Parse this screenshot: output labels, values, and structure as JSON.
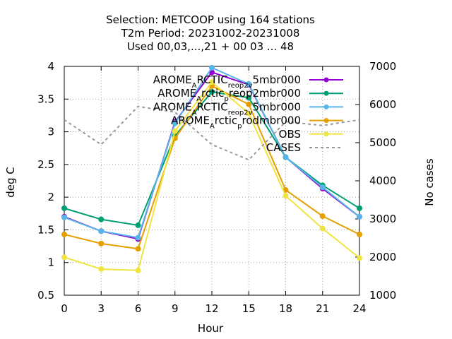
{
  "chart_data": {
    "type": "line",
    "title_lines": [
      "Selection: METCOOP using   164 stations",
      "T2m   Period: 20231002-20231008",
      "Used  00,03,...,21 + 00 03 ... 48"
    ],
    "xlabel": "Hour",
    "ylabel": "deg C",
    "y2label": "No cases",
    "x": [
      0,
      3,
      6,
      9,
      12,
      15,
      18,
      21,
      24
    ],
    "xlim": [
      0,
      24
    ],
    "ylim": [
      0.5,
      4
    ],
    "y2lim": [
      1000,
      7000
    ],
    "x_ticks": [
      "0",
      "3",
      "6",
      "9",
      "12",
      "15",
      "18",
      "21",
      "24"
    ],
    "y_ticks": [
      "0.5",
      "1",
      "1.5",
      "2",
      "2.5",
      "3",
      "3.5",
      "4"
    ],
    "y2_ticks": [
      "1000",
      "2000",
      "3000",
      "4000",
      "5000",
      "6000",
      "7000"
    ],
    "grid": true,
    "legend_position": "top-right",
    "series": [
      {
        "name_parts": [
          [
            "AROME",
            ""
          ],
          [
            "A",
            "sub"
          ],
          [
            "RCTIC",
            ""
          ],
          [
            "reop2",
            "sub"
          ],
          [
            "v",
            "sub"
          ],
          [
            "5mbr000",
            ""
          ]
        ],
        "legend_text": "AROME_ARCTIC_reop2_v5mbr000",
        "color": "#9400d3",
        "axis": "y",
        "values": [
          1.7,
          1.48,
          1.36,
          3.15,
          3.91,
          3.72,
          2.61,
          2.13,
          1.7
        ]
      },
      {
        "name_parts": [
          [
            "AROME",
            ""
          ],
          [
            "A",
            "sub"
          ],
          [
            "rctic",
            ""
          ],
          [
            "p",
            "sub"
          ],
          [
            "reop2mbr000",
            ""
          ]
        ],
        "legend_text": "AROME_Arctic_preop2mbr000",
        "color": "#009e73",
        "axis": "y",
        "values": [
          1.83,
          1.66,
          1.57,
          2.94,
          3.61,
          3.52,
          2.61,
          2.18,
          1.83
        ]
      },
      {
        "name_parts": [
          [
            "AROME",
            ""
          ],
          [
            "A",
            "sub"
          ],
          [
            "RCTIC",
            ""
          ],
          [
            "reop2",
            "sub"
          ],
          [
            "v",
            "sub"
          ],
          [
            "5mbr000",
            ""
          ]
        ],
        "legend_text": "AROME_ARCTIC_reop2_v5mbr000",
        "color": "#56b4e9",
        "axis": "y",
        "values": [
          1.69,
          1.48,
          1.38,
          3.13,
          3.98,
          3.73,
          2.61,
          2.15,
          1.7
        ]
      },
      {
        "name_parts": [
          [
            "AROME",
            ""
          ],
          [
            "A",
            "sub"
          ],
          [
            "rctic",
            ""
          ],
          [
            "p",
            "sub"
          ],
          [
            "rodmbr000",
            ""
          ]
        ],
        "legend_text": "AROME_Arctic_prodmbr000",
        "color": "#e69f00",
        "axis": "y",
        "values": [
          1.43,
          1.29,
          1.21,
          2.9,
          3.7,
          3.42,
          2.11,
          1.71,
          1.43
        ]
      },
      {
        "name_parts": [
          [
            "OBS",
            ""
          ]
        ],
        "legend_text": "OBS",
        "color": "#f0e442",
        "axis": "y",
        "values": [
          1.08,
          0.9,
          0.88,
          3.01,
          3.76,
          3.28,
          2.02,
          1.52,
          1.07
        ]
      },
      {
        "name_parts": [
          [
            "CASES",
            ""
          ]
        ],
        "legend_text": "CASES",
        "color": "#999999",
        "axis": "y2",
        "dashed": true,
        "values": [
          5600,
          4950,
          5950,
          5800,
          4950,
          4550,
          5550,
          5450,
          5600
        ]
      }
    ]
  }
}
